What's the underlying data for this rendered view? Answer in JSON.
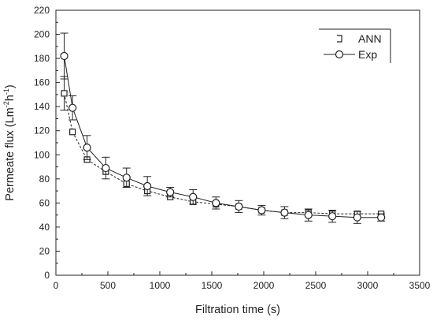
{
  "chart_data": {
    "type": "line",
    "xlabel": "Filtration time (s)",
    "ylabel_main": "Permeate flux (Lm",
    "ylabel_sup1": "-2",
    "ylabel_mid": "h",
    "ylabel_sup2": "-1",
    "ylabel_end": ")",
    "xlim": [
      0,
      3500
    ],
    "ylim": [
      0,
      220
    ],
    "xticks": [
      0,
      500,
      1000,
      1500,
      2000,
      2500,
      3000,
      3500
    ],
    "yticks": [
      0,
      20,
      40,
      60,
      80,
      100,
      120,
      140,
      160,
      180,
      200,
      220
    ],
    "grid": false,
    "legend_position": "top-right",
    "series": [
      {
        "name": "ANN",
        "marker": "square",
        "line": "dashed",
        "x": [
          80,
          160,
          300,
          480,
          680,
          880,
          1100,
          1320,
          1540,
          1760,
          1980,
          2200,
          2430,
          2660,
          2900,
          3130
        ],
        "y": [
          151,
          119,
          96,
          86,
          76,
          70,
          65,
          61,
          59,
          57,
          54,
          52,
          52,
          51,
          51,
          51
        ],
        "err": [
          14,
          0,
          0,
          0,
          0,
          0,
          0,
          0,
          0,
          0,
          0,
          0,
          0,
          0,
          0,
          0
        ]
      },
      {
        "name": "Exp",
        "marker": "circle",
        "line": "solid",
        "x": [
          80,
          160,
          300,
          480,
          680,
          880,
          1100,
          1320,
          1540,
          1760,
          1980,
          2200,
          2430,
          2660,
          2900,
          3130
        ],
        "y": [
          182,
          139,
          106,
          89,
          81,
          74,
          69,
          65,
          60,
          57,
          54,
          52,
          50,
          49,
          48,
          48
        ],
        "err": [
          19,
          10,
          10,
          9,
          8,
          8,
          4,
          6,
          5,
          5,
          4,
          5,
          5,
          5,
          5,
          3
        ]
      }
    ]
  }
}
